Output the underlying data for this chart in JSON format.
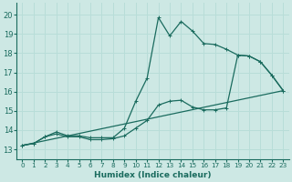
{
  "title": "",
  "xlabel": "Humidex (Indice chaleur)",
  "ylabel": "",
  "bg_color": "#cde8e4",
  "line_color": "#1a6b5e",
  "grid_color": "#b8ddd8",
  "x_ticks": [
    0,
    1,
    2,
    3,
    4,
    5,
    6,
    7,
    8,
    9,
    10,
    11,
    12,
    13,
    14,
    15,
    16,
    17,
    18,
    19,
    20,
    21,
    22,
    23
  ],
  "y_ticks": [
    13,
    14,
    15,
    16,
    17,
    18,
    19,
    20
  ],
  "ylim": [
    12.5,
    20.6
  ],
  "xlim": [
    -0.5,
    23.5
  ],
  "series1_x": [
    0,
    1,
    2,
    3,
    4,
    5,
    6,
    7,
    8,
    9,
    10,
    11,
    12,
    13,
    14,
    15,
    16,
    17,
    18,
    19,
    20,
    21,
    22,
    23
  ],
  "series1_y": [
    13.2,
    13.3,
    13.65,
    13.9,
    13.7,
    13.7,
    13.6,
    13.6,
    13.6,
    14.1,
    15.5,
    16.7,
    19.85,
    18.9,
    19.65,
    19.15,
    18.5,
    18.45,
    18.2,
    17.9,
    17.85,
    17.55,
    16.85,
    16.05
  ],
  "series2_x": [
    0,
    23
  ],
  "series2_y": [
    13.2,
    16.05
  ],
  "series3_x": [
    0,
    1,
    2,
    3,
    4,
    5,
    6,
    7,
    8,
    9,
    10,
    11,
    12,
    13,
    14,
    15,
    16,
    17,
    18,
    19,
    20,
    21,
    22,
    23
  ],
  "series3_y": [
    13.2,
    13.3,
    13.65,
    13.8,
    13.65,
    13.65,
    13.5,
    13.5,
    13.55,
    13.7,
    14.1,
    14.5,
    15.3,
    15.5,
    15.55,
    15.2,
    15.05,
    15.05,
    15.15,
    17.9,
    17.85,
    17.55,
    16.85,
    16.05
  ]
}
